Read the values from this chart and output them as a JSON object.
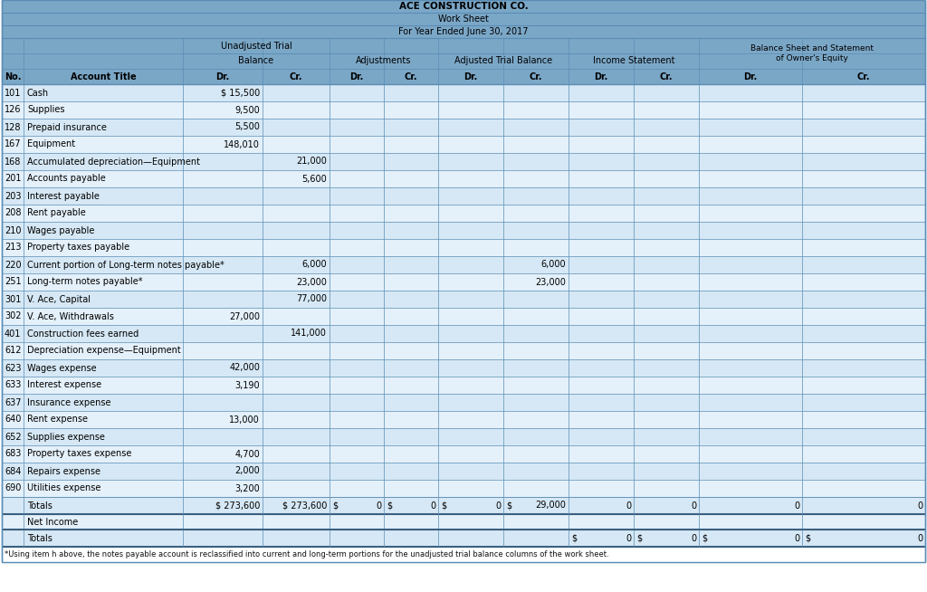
{
  "title1": "ACE CONSTRUCTION CO.",
  "title2": "Work Sheet",
  "title3": "For Year Ended June 30, 2017",
  "header_bg": "#7BA7C7",
  "row_bg_even": "#D6E8F5",
  "row_bg_odd": "#E4F0FA",
  "border_color": "#5A8DB5",
  "border_dark": "#3A6080",
  "text_color": "#000000",
  "rows": [
    [
      "101",
      "Cash",
      "$ 15,500",
      "",
      "",
      "",
      "",
      "",
      "",
      "",
      "",
      ""
    ],
    [
      "126",
      "Supplies",
      "9,500",
      "",
      "",
      "",
      "",
      "",
      "",
      "",
      "",
      ""
    ],
    [
      "128",
      "Prepaid insurance",
      "5,500",
      "",
      "",
      "",
      "",
      "",
      "",
      "",
      "",
      ""
    ],
    [
      "167",
      "Equipment",
      "148,010",
      "",
      "",
      "",
      "",
      "",
      "",
      "",
      "",
      ""
    ],
    [
      "168",
      "Accumulated depreciation—Equipment",
      "",
      "21,000",
      "",
      "",
      "",
      "",
      "",
      "",
      "",
      ""
    ],
    [
      "201",
      "Accounts payable",
      "",
      "5,600",
      "",
      "",
      "",
      "",
      "",
      "",
      "",
      ""
    ],
    [
      "203",
      "Interest payable",
      "",
      "",
      "",
      "",
      "",
      "",
      "",
      "",
      "",
      ""
    ],
    [
      "208",
      "Rent payable",
      "",
      "",
      "",
      "",
      "",
      "",
      "",
      "",
      "",
      ""
    ],
    [
      "210",
      "Wages payable",
      "",
      "",
      "",
      "",
      "",
      "",
      "",
      "",
      "",
      ""
    ],
    [
      "213",
      "Property taxes payable",
      "",
      "",
      "",
      "",
      "",
      "",
      "",
      "",
      "",
      ""
    ],
    [
      "220",
      "Current portion of Long-term notes payable*",
      "",
      "6,000",
      "",
      "",
      "",
      "6,000",
      "",
      "",
      "",
      ""
    ],
    [
      "251",
      "Long-term notes payable*",
      "",
      "23,000",
      "",
      "",
      "",
      "23,000",
      "",
      "",
      "",
      ""
    ],
    [
      "301",
      "V. Ace, Capital",
      "",
      "77,000",
      "",
      "",
      "",
      "",
      "",
      "",
      "",
      ""
    ],
    [
      "302",
      "V. Ace, Withdrawals",
      "27,000",
      "",
      "",
      "",
      "",
      "",
      "",
      "",
      "",
      ""
    ],
    [
      "401",
      "Construction fees earned",
      "",
      "141,000",
      "",
      "",
      "",
      "",
      "",
      "",
      "",
      ""
    ],
    [
      "612",
      "Depreciation expense—Equipment",
      "",
      "",
      "",
      "",
      "",
      "",
      "",
      "",
      "",
      ""
    ],
    [
      "623",
      "Wages expense",
      "42,000",
      "",
      "",
      "",
      "",
      "",
      "",
      "",
      "",
      ""
    ],
    [
      "633",
      "Interest expense",
      "3,190",
      "",
      "",
      "",
      "",
      "",
      "",
      "",
      "",
      ""
    ],
    [
      "637",
      "Insurance expense",
      "",
      "",
      "",
      "",
      "",
      "",
      "",
      "",
      "",
      ""
    ],
    [
      "640",
      "Rent expense",
      "13,000",
      "",
      "",
      "",
      "",
      "",
      "",
      "",
      "",
      ""
    ],
    [
      "652",
      "Supplies expense",
      "",
      "",
      "",
      "",
      "",
      "",
      "",
      "",
      "",
      ""
    ],
    [
      "683",
      "Property taxes expense",
      "4,700",
      "",
      "",
      "",
      "",
      "",
      "",
      "",
      "",
      ""
    ],
    [
      "684",
      "Repairs expense",
      "2,000",
      "",
      "",
      "",
      "",
      "",
      "",
      "",
      "",
      ""
    ],
    [
      "690",
      "Utilities expense",
      "3,200",
      "",
      "",
      "",
      "",
      "",
      "",
      "",
      "",
      ""
    ]
  ],
  "footnote": "*Using item h above, the notes payable account is reclassified into current and long-term portions for the unadjusted trial balance columns of the work sheet."
}
